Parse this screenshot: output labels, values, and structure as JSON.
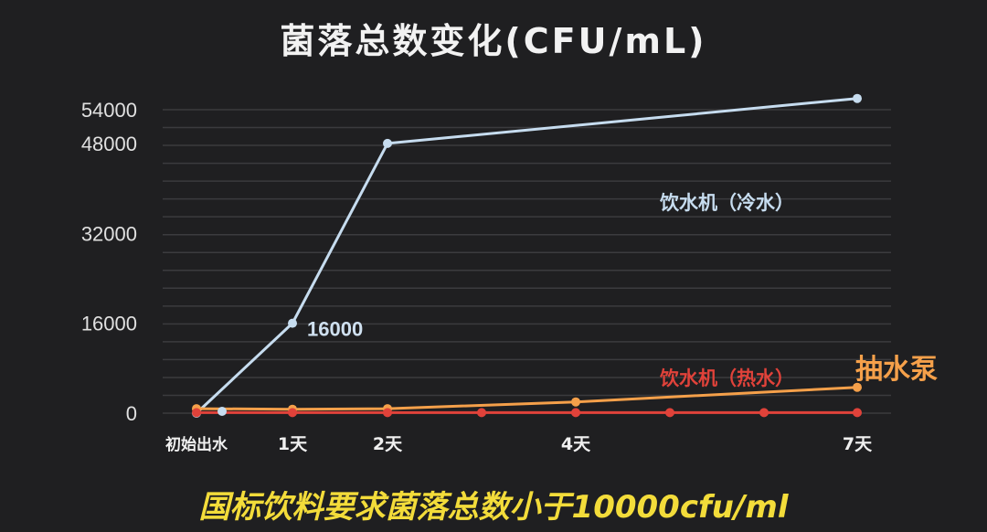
{
  "chart_data": {
    "type": "line",
    "title": "菌落总数变化(CFU/mL)",
    "footnote": "国标饮料要求菌落总数小于10000cfu/ml",
    "x_ticks": [
      "初始出水",
      "1天",
      "2天",
      "4天",
      "7天"
    ],
    "x": [
      0,
      1,
      2,
      3,
      4,
      5,
      6,
      7
    ],
    "ylim": [
      0,
      54000
    ],
    "y_ticks": [
      0,
      16000,
      32000,
      48000,
      54000
    ],
    "grid": true,
    "series": [
      {
        "name": "饮水机（冷水）",
        "color": "#c6dcef",
        "x": [
          0,
          1,
          2,
          7
        ],
        "values": [
          0,
          16000,
          48000,
          56000
        ],
        "point_label": {
          "index": 1,
          "text": "16000"
        }
      },
      {
        "name": "抽水泵",
        "color": "#f5a04a",
        "x": [
          0,
          1,
          2,
          4,
          7
        ],
        "values": [
          800,
          700,
          800,
          2000,
          4600
        ]
      },
      {
        "name": "饮水机（热水）",
        "color": "#e0423a",
        "x": [
          0,
          1,
          2,
          3,
          4,
          5,
          6,
          7
        ],
        "values": [
          100,
          100,
          100,
          100,
          100,
          100,
          100,
          100
        ]
      }
    ]
  }
}
